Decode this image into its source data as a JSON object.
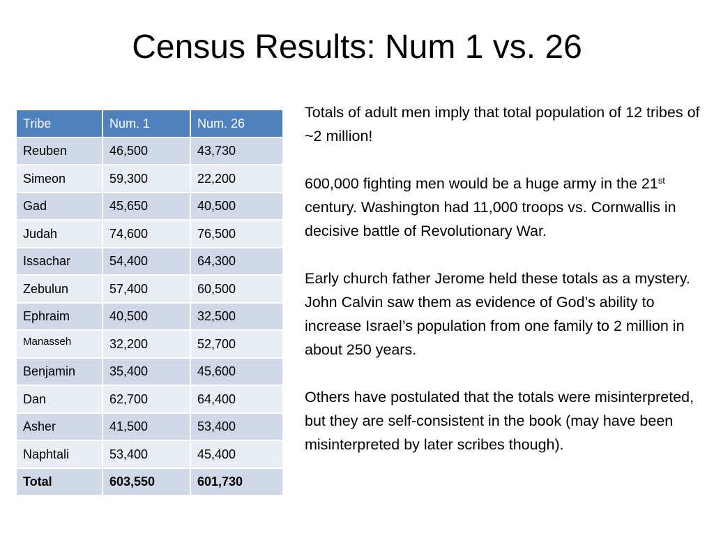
{
  "title": "Census Results:  Num 1 vs. 26",
  "table": {
    "headers": [
      "Tribe",
      "Num. 1",
      "Num. 26"
    ],
    "rows": [
      [
        "Reuben",
        "46,500",
        "43,730"
      ],
      [
        "Simeon",
        "59,300",
        "22,200"
      ],
      [
        "Gad",
        "45,650",
        "40,500"
      ],
      [
        "Judah",
        "74,600",
        "76,500"
      ],
      [
        "Issachar",
        "54,400",
        "64,300"
      ],
      [
        "Zebulun",
        "57,400",
        "60,500"
      ],
      [
        "Ephraim",
        "40,500",
        "32,500"
      ],
      [
        "Manasseh",
        "32,200",
        "52,700"
      ],
      [
        "Benjamin",
        "35,400",
        "45,600"
      ],
      [
        "Dan",
        "62,700",
        "64,400"
      ],
      [
        "Asher",
        "41,500",
        "53,400"
      ],
      [
        "Naphtali",
        "53,400",
        "45,400"
      ]
    ],
    "total": [
      "Total",
      "603,550",
      "601,730"
    ],
    "colors": {
      "header_bg": "#4f81bd",
      "row_odd_bg": "#d0d8e8",
      "row_even_bg": "#e9edf4"
    }
  },
  "paragraphs": {
    "p1": "Totals of adult men imply that total population of 12 tribes of ~2 million!",
    "p2_before": "600,000 fighting men would be a huge army in the 21",
    "p2_sup": "st",
    "p2_after": " century.  Washington had 11,000 troops vs. Cornwallis in decisive battle of Revolutionary War.",
    "p3": "Early church father Jerome held these totals as a mystery.  John Calvin saw them as evidence of God’s ability to increase Israel’s population from one family to 2 million in about 250 years.",
    "p4": "Others have postulated that the totals were misinterpreted, but they are self-consistent in the book (may have been misinterpreted by later scribes though)."
  }
}
